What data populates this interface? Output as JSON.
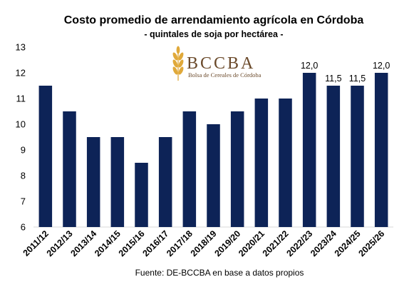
{
  "chart_data": {
    "type": "bar",
    "title": "Costo promedio de arrendamiento agrícola en Córdoba",
    "subtitle": "- quintales de soja por hectárea -",
    "source": "Fuente: DE-BCCBA en base a datos propios",
    "categories": [
      "2011/12",
      "2012/13",
      "2013/14",
      "2014/15",
      "2015/16",
      "2016/17",
      "2017/18",
      "2018/19",
      "2019/20",
      "2020/21",
      "2021/22",
      "2022/23",
      "2023/24",
      "2024/25",
      "2025/26"
    ],
    "values": [
      11.5,
      10.5,
      9.5,
      9.5,
      8.5,
      9.5,
      10.5,
      10.0,
      10.5,
      11.0,
      11.0,
      12.0,
      11.5,
      11.5,
      12.0
    ],
    "data_labels": [
      "",
      "",
      "",
      "",
      "",
      "",
      "",
      "",
      "",
      "",
      "",
      "12,0",
      "11,5",
      "11,5",
      "12,0"
    ],
    "ylim": [
      6,
      13
    ],
    "yticks": [
      "6",
      "7",
      "8",
      "9",
      "10",
      "11",
      "12",
      "13"
    ],
    "xlabel": "",
    "ylabel": "",
    "grid": false,
    "bar_color": "#0d2357"
  },
  "logo": {
    "name": "BCCBA",
    "tagline": "Bolsa de Cereales de Córdoba",
    "icon": "wheat-icon",
    "color": "#6b4a2b",
    "accent": "#e0a93a"
  }
}
